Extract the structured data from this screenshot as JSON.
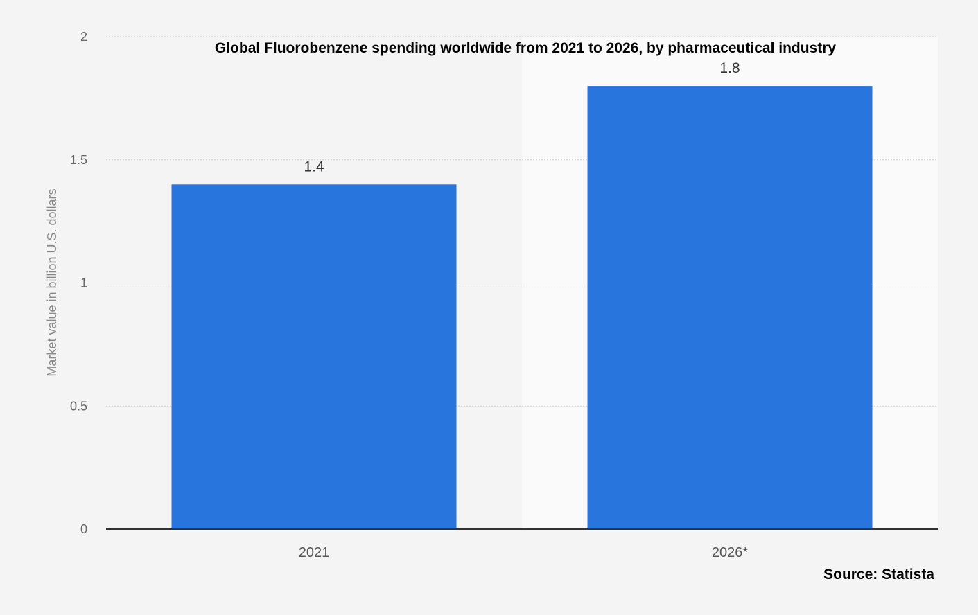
{
  "chart_data": {
    "type": "bar",
    "title": "Global Fluorobenzene spending worldwide from 2021 to 2026, by pharmaceutical industry",
    "categories": [
      "2021",
      "2026*"
    ],
    "values": [
      1.4,
      1.8
    ],
    "data_labels": [
      "1.4",
      "1.8"
    ],
    "xlabel": "",
    "ylabel": "Market value in billion U.S. dollars",
    "ylim": [
      0,
      2
    ],
    "yticks": [
      0,
      0.5,
      1,
      1.5,
      2
    ],
    "ytick_labels": [
      "0",
      "0.5",
      "1",
      "1.5",
      "2"
    ],
    "grid": true,
    "legend": "none",
    "source": "Source: Statista",
    "colors": {
      "bar": "#2876dd",
      "background": "#f4f4f4",
      "highlight_band": "#fafafa",
      "grid": "#cccccc",
      "axis": "#333333"
    }
  }
}
